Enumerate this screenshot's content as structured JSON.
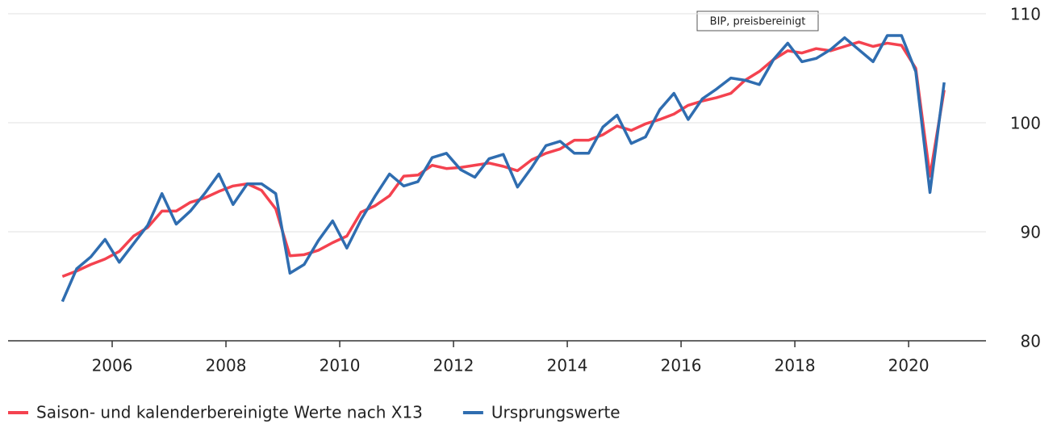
{
  "chart_data": {
    "type": "line",
    "annotation": "BIP, preisbereinigt",
    "x": [
      2005.125,
      2005.375,
      2005.625,
      2005.875,
      2006.125,
      2006.375,
      2006.625,
      2006.875,
      2007.125,
      2007.375,
      2007.625,
      2007.875,
      2008.125,
      2008.375,
      2008.625,
      2008.875,
      2009.125,
      2009.375,
      2009.625,
      2009.875,
      2010.125,
      2010.375,
      2010.625,
      2010.875,
      2011.125,
      2011.375,
      2011.625,
      2011.875,
      2012.125,
      2012.375,
      2012.625,
      2012.875,
      2013.125,
      2013.375,
      2013.625,
      2013.875,
      2014.125,
      2014.375,
      2014.625,
      2014.875,
      2015.125,
      2015.375,
      2015.625,
      2015.875,
      2016.125,
      2016.375,
      2016.625,
      2016.875,
      2017.125,
      2017.375,
      2017.625,
      2017.875,
      2018.125,
      2018.375,
      2018.625,
      2018.875,
      2019.125,
      2019.375,
      2019.625,
      2019.875,
      2020.125,
      2020.375,
      2020.625
    ],
    "series": [
      {
        "name": "Saison- und kalenderbereinigte Werte nach X13",
        "color": "#f4424f",
        "values": [
          85.9,
          86.4,
          87.0,
          87.5,
          88.2,
          89.6,
          90.4,
          91.9,
          91.9,
          92.7,
          93.1,
          93.7,
          94.2,
          94.4,
          93.8,
          92.1,
          87.8,
          87.9,
          88.3,
          89.0,
          89.6,
          91.8,
          92.4,
          93.3,
          95.1,
          95.2,
          96.1,
          95.8,
          95.9,
          96.1,
          96.3,
          96.0,
          95.6,
          96.6,
          97.2,
          97.6,
          98.4,
          98.4,
          98.9,
          99.7,
          99.3,
          99.9,
          100.3,
          100.8,
          101.6,
          102.0,
          102.3,
          102.7,
          103.9,
          104.7,
          105.8,
          106.6,
          106.4,
          106.8,
          106.6,
          107.0,
          107.4,
          107.0,
          107.3,
          107.1,
          105.0,
          95.1,
          103.0
        ]
      },
      {
        "name": "Ursprungswerte",
        "color": "#2f6db0",
        "values": [
          83.6,
          86.6,
          87.7,
          89.3,
          87.2,
          88.9,
          90.6,
          93.5,
          90.7,
          91.9,
          93.5,
          95.3,
          92.5,
          94.4,
          94.4,
          93.5,
          86.2,
          87.0,
          89.2,
          91.0,
          88.5,
          91.1,
          93.3,
          95.3,
          94.2,
          94.6,
          96.8,
          97.2,
          95.7,
          95.0,
          96.7,
          97.1,
          94.1,
          95.9,
          97.9,
          98.3,
          97.2,
          97.2,
          99.6,
          100.7,
          98.1,
          98.7,
          101.2,
          102.7,
          100.3,
          102.2,
          103.1,
          104.1,
          103.9,
          103.5,
          105.8,
          107.3,
          105.6,
          105.9,
          106.7,
          107.8,
          106.7,
          105.6,
          108.0,
          108.0,
          104.7,
          93.6,
          103.7
        ]
      }
    ],
    "xlim": [
      2004.17,
      2021.36
    ],
    "xticks": [
      2006,
      2008,
      2010,
      2012,
      2014,
      2016,
      2018,
      2020
    ],
    "ylim": [
      80,
      110
    ],
    "yticks": [
      80,
      90,
      100,
      110
    ],
    "grid": true,
    "legend": "bottom"
  }
}
